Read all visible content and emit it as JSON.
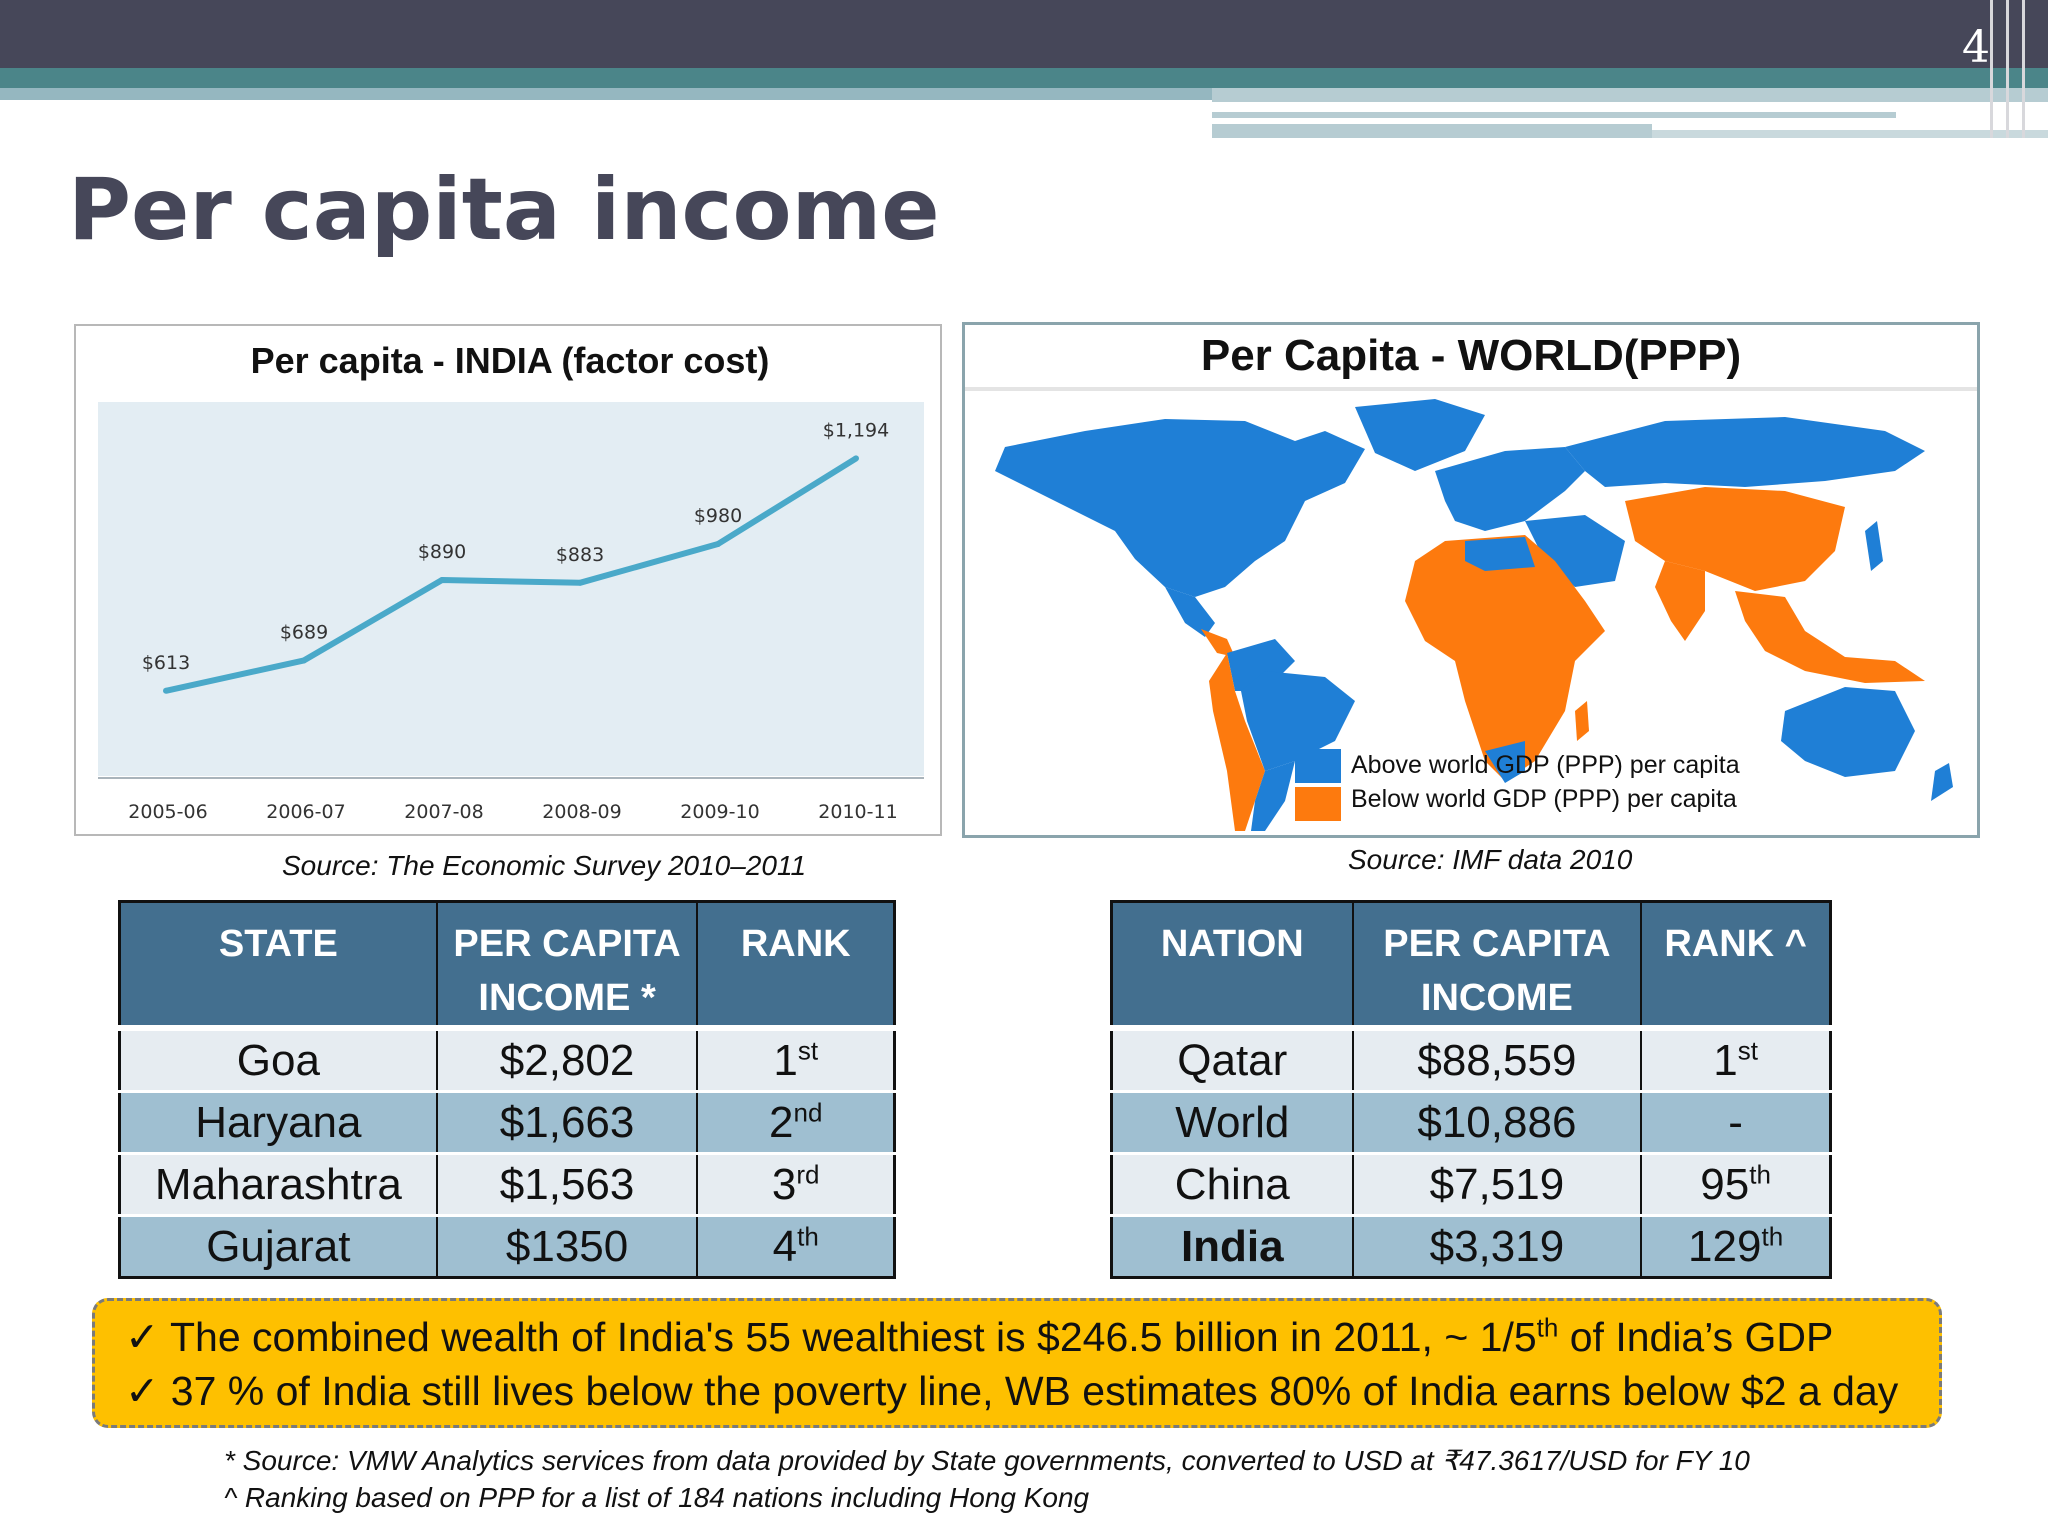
{
  "slide": {
    "number": "4",
    "title": "Per capita income"
  },
  "india_chart": {
    "source": "Source: The Economic Survey 2010–2011"
  },
  "chart_data": {
    "type": "line",
    "title": "Per capita - INDIA (factor cost)",
    "categories": [
      "2005-06",
      "2006-07",
      "2007-08",
      "2008-09",
      "2009-10",
      "2010-11"
    ],
    "values": [
      613,
      689,
      890,
      883,
      980,
      1194
    ],
    "data_labels": [
      "$613",
      "$689",
      "$890",
      "$883",
      "$980",
      "$1,194"
    ],
    "ylim": [
      400,
      1300
    ],
    "grid": false,
    "line_color": "#4aa9c9"
  },
  "world_map": {
    "title": "Per Capita - WORLD(PPP)",
    "legend": [
      {
        "label": "Above world GDP (PPP) per capita",
        "color": "#1f7fd6"
      },
      {
        "label": "Below world GDP (PPP) per capita",
        "color": "#fd7a0e"
      }
    ],
    "source": "Source: IMF data 2010"
  },
  "state_table": {
    "headers": [
      "STATE",
      "PER CAPITA INCOME *",
      "RANK"
    ],
    "rows": [
      {
        "name": "Goa",
        "income": "$2,802",
        "rank": "1",
        "suffix": "st"
      },
      {
        "name": "Haryana",
        "income": "$1,663",
        "rank": "2",
        "suffix": "nd"
      },
      {
        "name": "Maharashtra",
        "income": "$1,563",
        "rank": "3",
        "suffix": "rd"
      },
      {
        "name": "Gujarat",
        "income": "$1350",
        "rank": "4",
        "suffix": "th"
      }
    ]
  },
  "nation_table": {
    "headers": [
      "NATION",
      "PER CAPITA INCOME",
      "RANK ^"
    ],
    "rows": [
      {
        "name": "Qatar",
        "income": "$88,559",
        "rank": "1",
        "suffix": "st"
      },
      {
        "name": "World",
        "income": "$10,886",
        "rank": "-",
        "suffix": ""
      },
      {
        "name": "China",
        "income": "$7,519",
        "rank": "95",
        "suffix": "th"
      },
      {
        "name": "India",
        "income": "$3,319",
        "rank": "129",
        "suffix": "th"
      }
    ]
  },
  "callout": {
    "line1_pre": "The combined wealth of India's 55 wealthiest is $246.5 billion in 2011, ~ 1/5",
    "line1_sup": "th",
    "line1_post": " of India’s GDP",
    "line2": "37 % of India still lives below the poverty line, WB estimates 80% of India earns below $2 a day",
    "check": "✓"
  },
  "footnotes": [
    "* Source: VMW Analytics services from data provided by State governments, converted  to USD at ₹47.3617/USD for FY 10",
    "^ Ranking based on PPP for a list of 184 nations  including  Hong Kong"
  ]
}
